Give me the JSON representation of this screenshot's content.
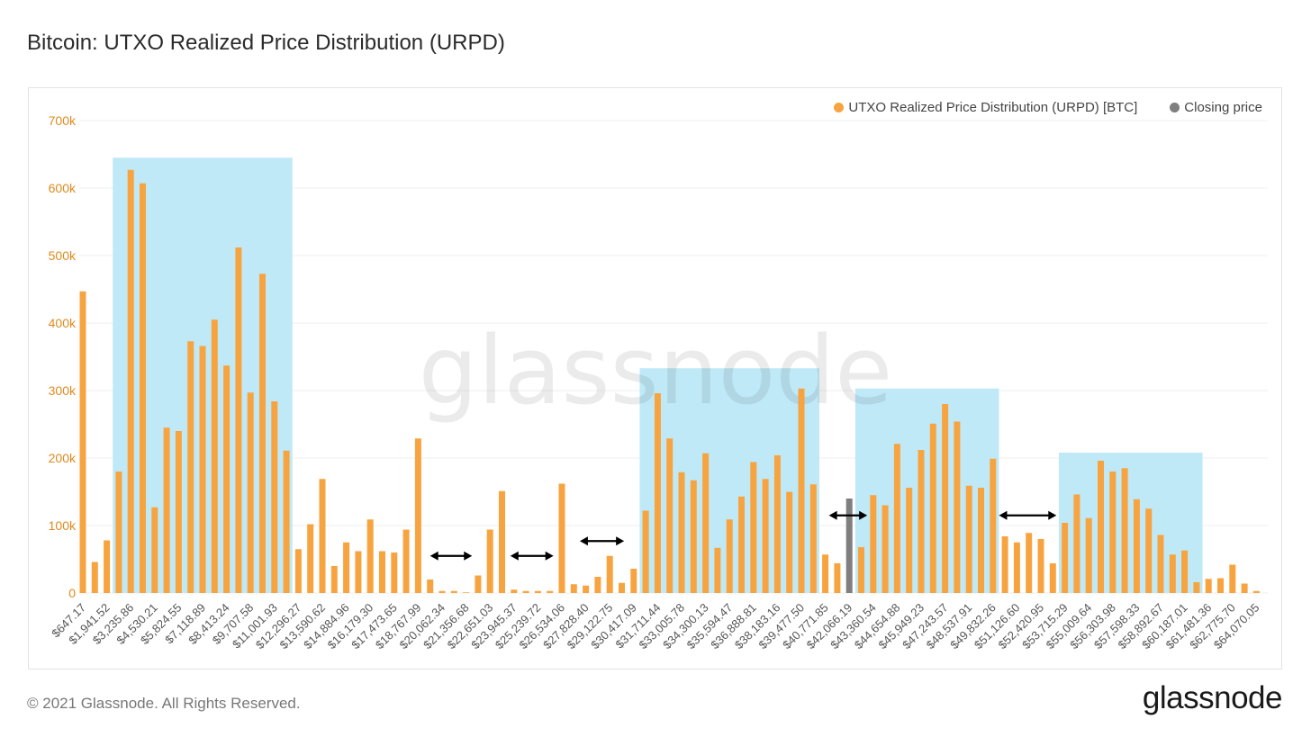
{
  "title": "Bitcoin: UTXO Realized Price Distribution (URPD)",
  "footer": "© 2021 Glassnode. All Rights Reserved.",
  "brand": "glassnode",
  "watermark": "glassnode",
  "colors": {
    "bar": "#f7a440",
    "closing": "#7f7f7f",
    "highlight": "#bfe9f7",
    "axis_text": "#e08a1e",
    "grid": "#efefef"
  },
  "legend": {
    "series_label": "UTXO Realized Price Distribution (URPD) [BTC]",
    "closing_label": "Closing price",
    "position": "top-right"
  },
  "chart_data": {
    "type": "bar",
    "title": "Bitcoin: UTXO Realized Price Distribution (URPD)",
    "xlabel": "",
    "ylabel": "",
    "ylim": [
      0,
      700000
    ],
    "yticks": [
      "0",
      "100k",
      "200k",
      "300k",
      "400k",
      "500k",
      "600k",
      "700k"
    ],
    "ytick_values": [
      0,
      100000,
      200000,
      300000,
      400000,
      500000,
      600000,
      700000
    ],
    "grid": true,
    "xtick_labels": [
      "$647.17",
      "$1,941.52",
      "$3,235.86",
      "$4,530.21",
      "$5,824.55",
      "$7,118.89",
      "$8,413.24",
      "$9,707.58",
      "$11,001.93",
      "$12,296.27",
      "$13,590.62",
      "$14,884.96",
      "$16,179.30",
      "$17,473.65",
      "$18,767.99",
      "$20,062.34",
      "$21,356.68",
      "$22,651.03",
      "$23,945.37",
      "$25,239.72",
      "$26,534.06",
      "$27,828.40",
      "$29,122.75",
      "$30,417.09",
      "$31,711.44",
      "$33,005.78",
      "$34,300.13",
      "$35,594.47",
      "$36,888.81",
      "$38,183.16",
      "$39,477.50",
      "$40,771.85",
      "$42,066.19",
      "$43,360.54",
      "$44,654.88",
      "$45,949.23",
      "$47,243.57",
      "$48,537.91",
      "$49,832.26",
      "$51,126.60",
      "$52,420.95",
      "$53,715.29",
      "$55,009.64",
      "$56,303.98",
      "$57,598.33",
      "$58,892.67",
      "$60,187.01",
      "$61,481.36",
      "$62,775.70",
      "$64,070.05"
    ],
    "series": [
      {
        "name": "UTXO Realized Price Distribution (URPD) [BTC]",
        "values": [
          447000,
          46000,
          78000,
          180000,
          627000,
          607000,
          127000,
          245000,
          240000,
          373000,
          366000,
          405000,
          337000,
          512000,
          297000,
          473000,
          284000,
          211000,
          65000,
          102000,
          169000,
          40000,
          75000,
          62000,
          109000,
          62000,
          60000,
          94000,
          229000,
          20000,
          3000,
          3000,
          1000,
          26000,
          94000,
          151000,
          5000,
          3000,
          3000,
          3000,
          162000,
          13000,
          11000,
          24000,
          55000,
          15000,
          36000,
          122000,
          296000,
          229000,
          179000,
          167000,
          207000,
          67000,
          109000,
          143000,
          194000,
          169000,
          204000,
          150000,
          303000,
          161000,
          57000,
          44000,
          0,
          68000,
          145000,
          130000,
          221000,
          156000,
          212000,
          251000,
          280000,
          254000,
          159000,
          156000,
          199000,
          84000,
          75000,
          89000,
          80000,
          44000,
          104000,
          146000,
          111000,
          196000,
          180000,
          185000,
          139000,
          125000,
          86000,
          57000,
          63000,
          16000,
          21000,
          22000,
          42000,
          14000,
          3000
        ]
      }
    ],
    "closing_price": {
      "index": 64,
      "value": 140000
    },
    "highlight_ranges": [
      {
        "from": 3,
        "to": 17,
        "top": 645000
      },
      {
        "from": 47,
        "to": 61,
        "top": 333000
      },
      {
        "from": 65,
        "to": 76,
        "top": 303000
      },
      {
        "from": 82,
        "to": 93,
        "top": 208000
      }
    ],
    "arrows": [
      {
        "from": 29,
        "to": 32.5,
        "y": 55000
      },
      {
        "from": 35.7,
        "to": 39.3,
        "y": 55000
      },
      {
        "from": 41.5,
        "to": 45.2,
        "y": 77000
      },
      {
        "from": 62.3,
        "to": 65.5,
        "y": 115000
      },
      {
        "from": 76.5,
        "to": 81.3,
        "y": 115000
      }
    ]
  }
}
